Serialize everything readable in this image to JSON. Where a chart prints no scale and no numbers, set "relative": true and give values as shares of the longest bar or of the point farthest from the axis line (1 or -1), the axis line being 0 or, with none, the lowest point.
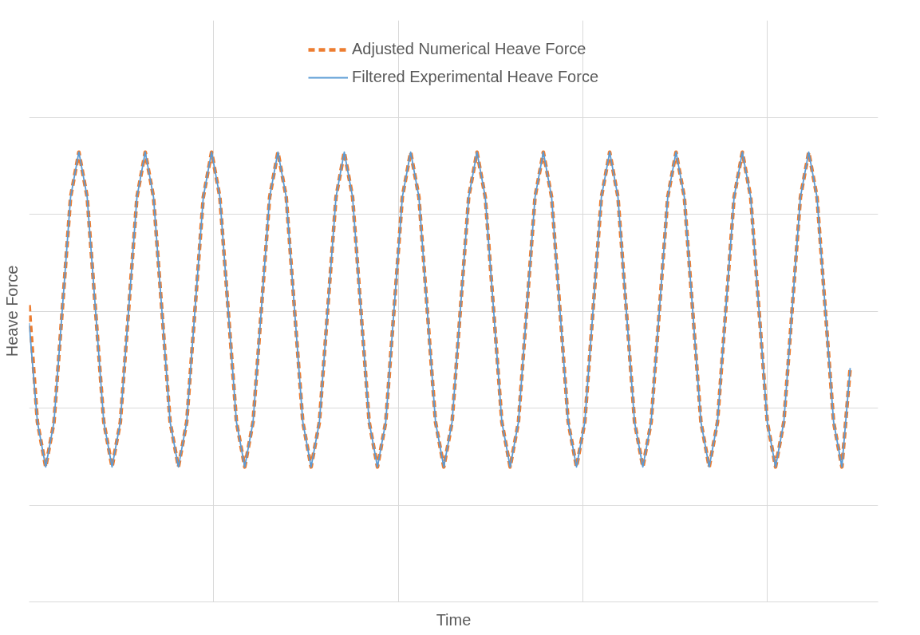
{
  "chart_data": {
    "type": "line",
    "relative": true,
    "xlabel": "Time",
    "ylabel": "Heave Force",
    "grid": true,
    "legend": "top",
    "marker": "none",
    "categories": [
      null,
      null,
      null,
      null,
      null,
      null,
      null,
      null,
      null,
      null,
      null,
      null,
      null,
      null,
      null,
      null,
      null,
      null,
      null,
      null,
      null,
      null,
      null,
      null,
      null,
      null,
      null,
      null,
      null,
      null,
      null,
      null,
      null,
      null,
      null,
      null,
      null,
      null,
      null,
      null,
      null,
      null,
      null,
      null,
      null,
      null,
      null,
      null,
      null,
      null,
      null,
      null,
      null,
      null,
      null,
      null,
      null,
      null,
      null,
      null,
      null,
      null,
      null,
      null,
      null,
      null,
      null,
      null,
      null,
      null,
      null,
      null,
      null,
      null,
      null,
      null,
      null,
      null,
      null,
      null,
      null,
      null,
      null,
      null,
      null,
      null,
      null,
      null,
      null,
      null,
      null,
      null,
      null,
      null,
      null,
      null,
      null,
      null,
      null,
      null
    ],
    "series": [
      {
        "name": "Adjusted Numerical Heave Force",
        "color": "#ed7d31",
        "line_style": "dashed",
        "values": [
          0.66,
          0.4,
          0.3,
          0.4,
          0.65,
          0.9,
          1.0,
          0.9,
          0.65,
          0.4,
          0.3,
          0.4,
          0.65,
          0.9,
          1.0,
          0.9,
          0.65,
          0.4,
          0.3,
          0.4,
          0.65,
          0.9,
          1.0,
          0.9,
          0.65,
          0.4,
          0.3,
          0.4,
          0.65,
          0.9,
          1.0,
          0.9,
          0.65,
          0.4,
          0.3,
          0.4,
          0.65,
          0.9,
          1.0,
          0.9,
          0.65,
          0.4,
          0.3,
          0.4,
          0.65,
          0.9,
          1.0,
          0.9,
          0.65,
          0.4,
          0.3,
          0.4,
          0.65,
          0.9,
          1.0,
          0.9,
          0.65,
          0.4,
          0.3,
          0.4,
          0.65,
          0.9,
          1.0,
          0.9,
          0.65,
          0.4,
          0.3,
          0.4,
          0.65,
          0.9,
          1.0,
          0.9,
          0.65,
          0.4,
          0.3,
          0.4,
          0.65,
          0.9,
          1.0,
          0.9,
          0.65,
          0.4,
          0.3,
          0.4,
          0.65,
          0.9,
          1.0,
          0.9,
          0.65,
          0.4,
          0.3,
          0.4,
          0.65,
          0.9,
          1.0,
          0.9,
          0.65,
          0.4,
          0.3,
          0.52
        ]
      },
      {
        "name": "Filtered Experimental Heave Force",
        "color": "#5b9bd5",
        "line_style": "solid",
        "values": [
          0.62,
          0.4,
          0.3,
          0.4,
          0.65,
          0.9,
          1.0,
          0.9,
          0.65,
          0.4,
          0.3,
          0.4,
          0.65,
          0.9,
          1.0,
          0.9,
          0.65,
          0.4,
          0.3,
          0.4,
          0.65,
          0.9,
          1.0,
          0.9,
          0.65,
          0.4,
          0.3,
          0.4,
          0.65,
          0.9,
          1.0,
          0.9,
          0.65,
          0.4,
          0.3,
          0.4,
          0.65,
          0.9,
          1.0,
          0.9,
          0.65,
          0.4,
          0.3,
          0.4,
          0.65,
          0.9,
          1.0,
          0.9,
          0.65,
          0.4,
          0.3,
          0.4,
          0.65,
          0.9,
          1.0,
          0.9,
          0.65,
          0.4,
          0.3,
          0.4,
          0.65,
          0.9,
          1.0,
          0.9,
          0.65,
          0.4,
          0.3,
          0.4,
          0.65,
          0.9,
          1.0,
          0.9,
          0.65,
          0.4,
          0.3,
          0.4,
          0.65,
          0.9,
          1.0,
          0.9,
          0.65,
          0.4,
          0.3,
          0.4,
          0.65,
          0.9,
          1.0,
          0.9,
          0.65,
          0.4,
          0.3,
          0.4,
          0.65,
          0.9,
          1.0,
          0.9,
          0.65,
          0.4,
          0.3,
          0.52
        ]
      }
    ]
  }
}
